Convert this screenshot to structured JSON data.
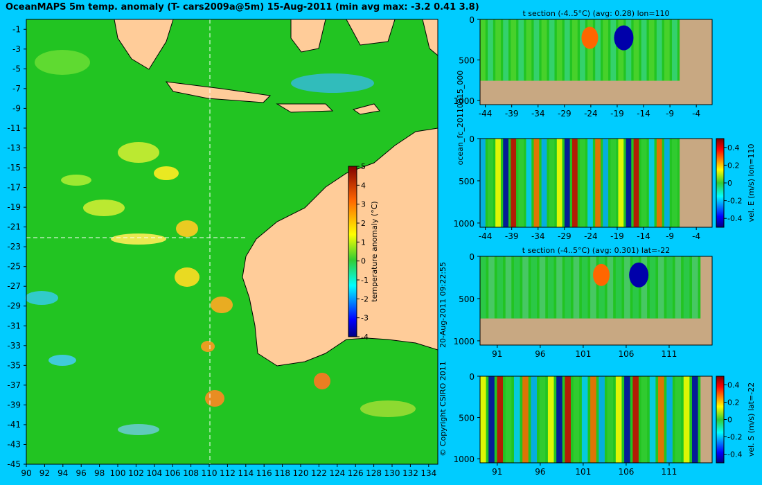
{
  "title": "OceanMAPS 5m temp. anomaly (T- cars2009a@5m) 15-Aug-2011 (min avg max: -3.2 0.41 3.8)",
  "side_labels": {
    "run_id": "ocean_fc_20110815_000",
    "timestamp": "20-Aug-2011 09:22:55",
    "copyright": "© Copyright CSIRO 2011"
  },
  "colors": {
    "background": "#00ccff",
    "land": "#ffcc99",
    "bottom": "#c8a882",
    "guide": "#ffffff"
  },
  "chart_data": [
    {
      "type": "heatmap",
      "name": "map",
      "title": "OceanMAPS 5m temp. anomaly (T- cars2009a@5m) 15-Aug-2011 (min avg max: -3.2 0.41 3.8)",
      "x_ticks": [
        90,
        92,
        94,
        96,
        98,
        100,
        102,
        104,
        106,
        108,
        110,
        112,
        114,
        116,
        118,
        120,
        122,
        124,
        126,
        128,
        130,
        132,
        134
      ],
      "y_ticks": [
        -1,
        -3,
        -5,
        -7,
        -9,
        -11,
        -13,
        -15,
        -17,
        -19,
        -21,
        -23,
        -25,
        -27,
        -29,
        -31,
        -33,
        -35,
        -37,
        -39,
        -41,
        -43,
        -45
      ],
      "xlim": [
        90,
        135
      ],
      "ylim": [
        -45,
        0
      ],
      "guide_lon": 110,
      "guide_lat": -22,
      "colorbar": {
        "label": "temperature anomaly (°C)",
        "ticks": [
          5,
          4,
          3,
          2,
          1,
          0,
          -1,
          -2,
          -3,
          -4
        ],
        "range": [
          -4,
          5
        ]
      }
    },
    {
      "type": "heatmap",
      "name": "panel1",
      "title": "t section (-4..5°C) (avg: 0.28) lon=110",
      "x_ticks": [
        -44,
        -39,
        -34,
        -29,
        -24,
        -19,
        -14,
        -9,
        -4
      ],
      "y_ticks": [
        0,
        500,
        1000
      ],
      "xlim": [
        -45,
        -1
      ],
      "ylim": [
        1050,
        0
      ]
    },
    {
      "type": "heatmap",
      "name": "panel2",
      "title": "",
      "x_ticks": [
        -44,
        -39,
        -34,
        -29,
        -24,
        -19,
        -14,
        -9,
        -4
      ],
      "y_ticks": [
        0,
        500,
        1000
      ],
      "xlim": [
        -45,
        -1
      ],
      "ylim": [
        1050,
        0
      ],
      "colorbar": {
        "label": "vel. E (m/s) lon=110",
        "ticks": [
          "0.4",
          "0.2",
          "0",
          "-0.2",
          "-0.4"
        ],
        "range": [
          -0.5,
          0.5
        ]
      }
    },
    {
      "type": "heatmap",
      "name": "panel3",
      "title": "t section (-4..5°C) (avg: 0.301) lat=-22",
      "x_ticks": [
        91,
        96,
        101,
        106,
        111
      ],
      "y_ticks": [
        0,
        500,
        1000
      ],
      "xlim": [
        89,
        116
      ],
      "ylim": [
        1050,
        0
      ]
    },
    {
      "type": "heatmap",
      "name": "panel4",
      "title": "",
      "x_ticks": [
        91,
        96,
        101,
        106,
        111
      ],
      "y_ticks": [
        0,
        500,
        1000
      ],
      "xlim": [
        89,
        116
      ],
      "ylim": [
        1050,
        0
      ],
      "colorbar": {
        "label": "vel. S (m/s) lat=-22",
        "ticks": [
          "0.4",
          "0.2",
          "0",
          "-0.2",
          "-0.4"
        ],
        "range": [
          -0.5,
          0.5
        ]
      }
    }
  ]
}
